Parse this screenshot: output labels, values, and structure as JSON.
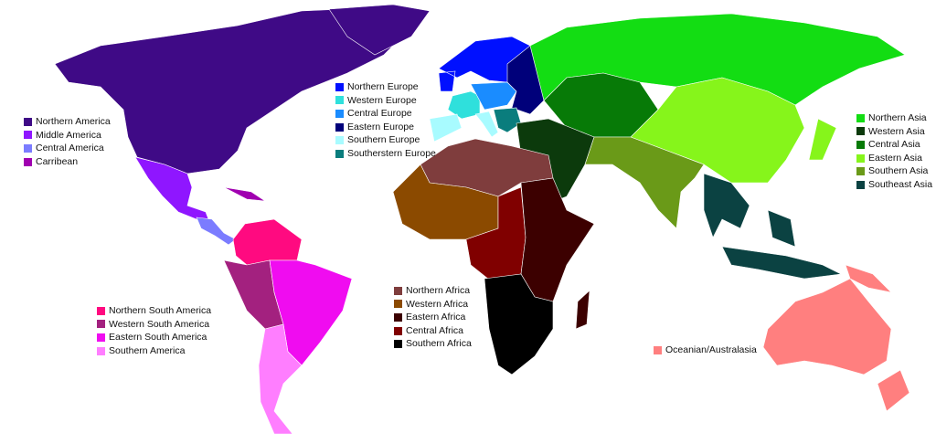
{
  "legends": {
    "americas": [
      {
        "label": "Northern America",
        "color": "#3f0a86"
      },
      {
        "label": "Middle America",
        "color": "#8f16ff"
      },
      {
        "label": "Central America",
        "color": "#7b7cff"
      },
      {
        "label": "Carribean",
        "color": "#a000b0"
      }
    ],
    "europe": [
      {
        "label": "Northern Europe",
        "color": "#0010ff"
      },
      {
        "label": "Western Europe",
        "color": "#2fe0dc"
      },
      {
        "label": "Central Europe",
        "color": "#1a8cff"
      },
      {
        "label": "Eastern Europe",
        "color": "#00007a"
      },
      {
        "label": "Southern Europe",
        "color": "#a8fbff"
      },
      {
        "label": "Southerstern Europe",
        "color": "#0a7d7d"
      }
    ],
    "asia": [
      {
        "label": "Northern Asia",
        "color": "#13dd13"
      },
      {
        "label": "Western Asia",
        "color": "#0c3a0c"
      },
      {
        "label": "Central Asia",
        "color": "#077a07"
      },
      {
        "label": "Eastern Asia",
        "color": "#86f51b"
      },
      {
        "label": "Southern Asia",
        "color": "#6a9a18"
      },
      {
        "label": "Southeast Asia",
        "color": "#0b4242"
      }
    ],
    "south_america": [
      {
        "label": "Northern South America",
        "color": "#ff0a80"
      },
      {
        "label": "Western South America",
        "color": "#a3217f"
      },
      {
        "label": "Eastern South America",
        "color": "#f00cf0"
      },
      {
        "label": "Southern America",
        "color": "#ff7eff"
      }
    ],
    "africa": [
      {
        "label": "Northern Africa",
        "color": "#7f3d3d"
      },
      {
        "label": "Western Africa",
        "color": "#8b4a00"
      },
      {
        "label": "Eastern Africa",
        "color": "#3c0000"
      },
      {
        "label": "Central Africa",
        "color": "#800000"
      },
      {
        "label": "Southern Africa",
        "color": "#000000"
      }
    ],
    "oceania": [
      {
        "label": "Oceanian/Australasia",
        "color": "#ff7f7f"
      }
    ]
  }
}
